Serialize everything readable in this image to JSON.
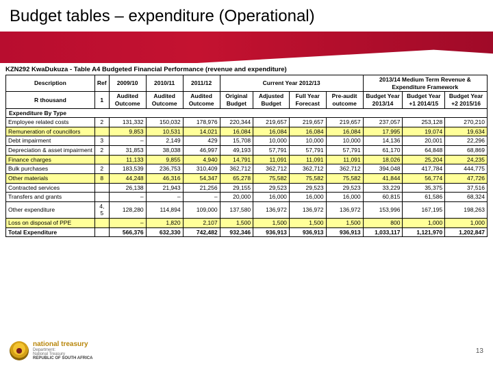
{
  "slide": {
    "title": "Budget tables – expenditure (Operational)",
    "page_number": "13"
  },
  "banner": {
    "background_colors": [
      "#b80d2f",
      "#c41230",
      "#a00a28"
    ]
  },
  "table": {
    "caption": "KZN292 KwaDukuza - Table A4 Budgeted Financial Performance (revenue and expenditure)",
    "highlight_color": "#ffff99",
    "border_color": "#000000",
    "header": {
      "description": "Description",
      "ref": "Ref",
      "years": [
        "2009/10",
        "2010/11",
        "2011/12"
      ],
      "current_year": "Current Year 2012/13",
      "mtref": "2013/14 Medium Term Revenue & Expenditure Framework",
      "row2": {
        "rthousand": "R thousand",
        "refval": "1",
        "audited": "Audited Outcome",
        "original_budget": "Original Budget",
        "adjusted_budget": "Adjusted Budget",
        "full_year": "Full Year Forecast",
        "preaudit": "Pre-audit outcome",
        "by1": "Budget Year 2013/14",
        "by2": "Budget Year +1 2014/15",
        "by3": "Budget Year +2 2015/16"
      }
    },
    "section_head": "Expenditure By Type",
    "rows": [
      {
        "desc": "Employee related costs",
        "ref": "2",
        "cells": [
          "131,332",
          "150,032",
          "178,976",
          "220,344",
          "219,657",
          "219,657",
          "219,657",
          "237,057",
          "253,128",
          "270,210"
        ],
        "highlight": false
      },
      {
        "desc": "Remuneration of councillors",
        "ref": "",
        "cells": [
          "9,853",
          "10,531",
          "14,021",
          "16,084",
          "16,084",
          "16,084",
          "16,084",
          "17,995",
          "19,074",
          "19,634"
        ],
        "highlight": true
      },
      {
        "desc": "Debt impairment",
        "ref": "3",
        "cells": [
          "–",
          "2,149",
          "429",
          "15,708",
          "10,000",
          "10,000",
          "10,000",
          "14,136",
          "20,001",
          "22,296"
        ],
        "highlight": false
      },
      {
        "desc": "Depreciation & asset impairment",
        "ref": "2",
        "cells": [
          "31,853",
          "38,038",
          "46,997",
          "49,193",
          "57,791",
          "57,791",
          "57,791",
          "61,170",
          "64,848",
          "68,869"
        ],
        "highlight": false
      },
      {
        "desc": "Finance charges",
        "ref": "",
        "cells": [
          "11,133",
          "9,855",
          "4,940",
          "14,791",
          "11,091",
          "11,091",
          "11,091",
          "18,026",
          "25,204",
          "24,235"
        ],
        "highlight": true
      },
      {
        "desc": "Bulk purchases",
        "ref": "2",
        "cells": [
          "183,539",
          "236,753",
          "310,409",
          "362,712",
          "362,712",
          "362,712",
          "362,712",
          "394,048",
          "417,784",
          "444,775"
        ],
        "highlight": false
      },
      {
        "desc": "Other materials",
        "ref": "8",
        "cells": [
          "44,248",
          "46,316",
          "54,347",
          "65,278",
          "75,582",
          "75,582",
          "75,582",
          "41,844",
          "56,774",
          "47,726"
        ],
        "highlight": true
      },
      {
        "desc": "Contracted services",
        "ref": "",
        "cells": [
          "26,138",
          "21,943",
          "21,256",
          "29,155",
          "29,523",
          "29,523",
          "29,523",
          "33,229",
          "35,375",
          "37,516"
        ],
        "highlight": false
      },
      {
        "desc": "Transfers and grants",
        "ref": "",
        "cells": [
          "–",
          "–",
          "–",
          "20,000",
          "16,000",
          "16,000",
          "16,000",
          "60,815",
          "61,586",
          "68,324"
        ],
        "highlight": false
      },
      {
        "desc": "Other expenditure",
        "ref": "4, 5",
        "cells": [
          "128,280",
          "114,894",
          "109,000",
          "137,580",
          "136,972",
          "136,972",
          "136,972",
          "153,996",
          "167,195",
          "198,263"
        ],
        "highlight": false
      },
      {
        "desc": "Loss on disposal of PPE",
        "ref": "",
        "cells": [
          "–",
          "1,820",
          "2,107",
          "1,500",
          "1,500",
          "1,500",
          "1,500",
          "800",
          "1,000",
          "1,000"
        ],
        "highlight": true
      }
    ],
    "total": {
      "desc": "Total Expenditure",
      "ref": "",
      "cells": [
        "566,376",
        "632,330",
        "742,482",
        "932,346",
        "936,913",
        "936,913",
        "936,913",
        "1,033,117",
        "1,121,970",
        "1,202,847"
      ]
    }
  },
  "footer": {
    "brand": "national treasury",
    "sub1": "Department:",
    "sub2": "National Treasury",
    "republic": "REPUBLIC OF SOUTH AFRICA"
  }
}
